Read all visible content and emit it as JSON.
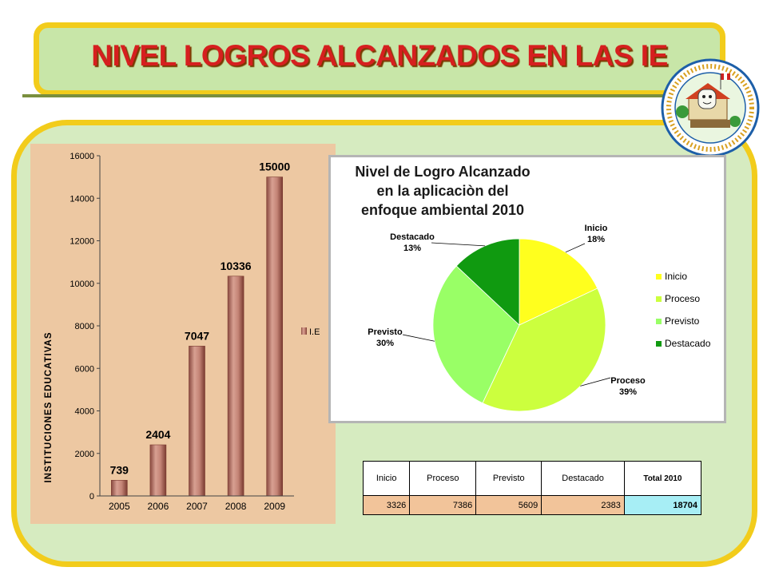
{
  "title": "NIVEL LOGROS ALCANZADOS EN LAS IE",
  "chart_data": [
    {
      "type": "bar",
      "categories": [
        "2005",
        "2006",
        "2007",
        "2008",
        "2009"
      ],
      "series": [
        {
          "name": "I.E",
          "values": [
            739,
            2404,
            7047,
            10336,
            15000
          ]
        }
      ],
      "data_labels": [
        "739",
        "2404",
        "7047",
        "10336",
        "15000"
      ],
      "ylabel": "INSTITUCIONES EDUCATIVAS",
      "ylim": [
        0,
        16000
      ],
      "yticks": [
        0,
        2000,
        4000,
        6000,
        8000,
        10000,
        12000,
        14000,
        16000
      ],
      "legend": [
        "I.E"
      ],
      "legend_position": "right",
      "bar_color": "#b8786c"
    },
    {
      "type": "pie",
      "title_lines": [
        "Nivel de Logro Alcanzado",
        "en la aplicaciòn del",
        "enfoque ambiental 2010"
      ],
      "slices": [
        {
          "label": "Inicio",
          "value": 18,
          "pct_label": "18%",
          "color": "#ffff1e"
        },
        {
          "label": "Proceso",
          "value": 39,
          "pct_label": "39%",
          "color": "#ccff3e"
        },
        {
          "label": "Previsto",
          "value": 30,
          "pct_label": "30%",
          "color": "#99ff66"
        },
        {
          "label": "Destacado",
          "value": 13,
          "pct_label": "13%",
          "color": "#109a10"
        }
      ],
      "legend_position": "right"
    }
  ],
  "table": {
    "headers": [
      "Inicio",
      "Proceso",
      "Previsto",
      "Destacado",
      "Total 2010"
    ],
    "values": [
      "3326",
      "7386",
      "5609",
      "2383",
      "18704"
    ]
  }
}
